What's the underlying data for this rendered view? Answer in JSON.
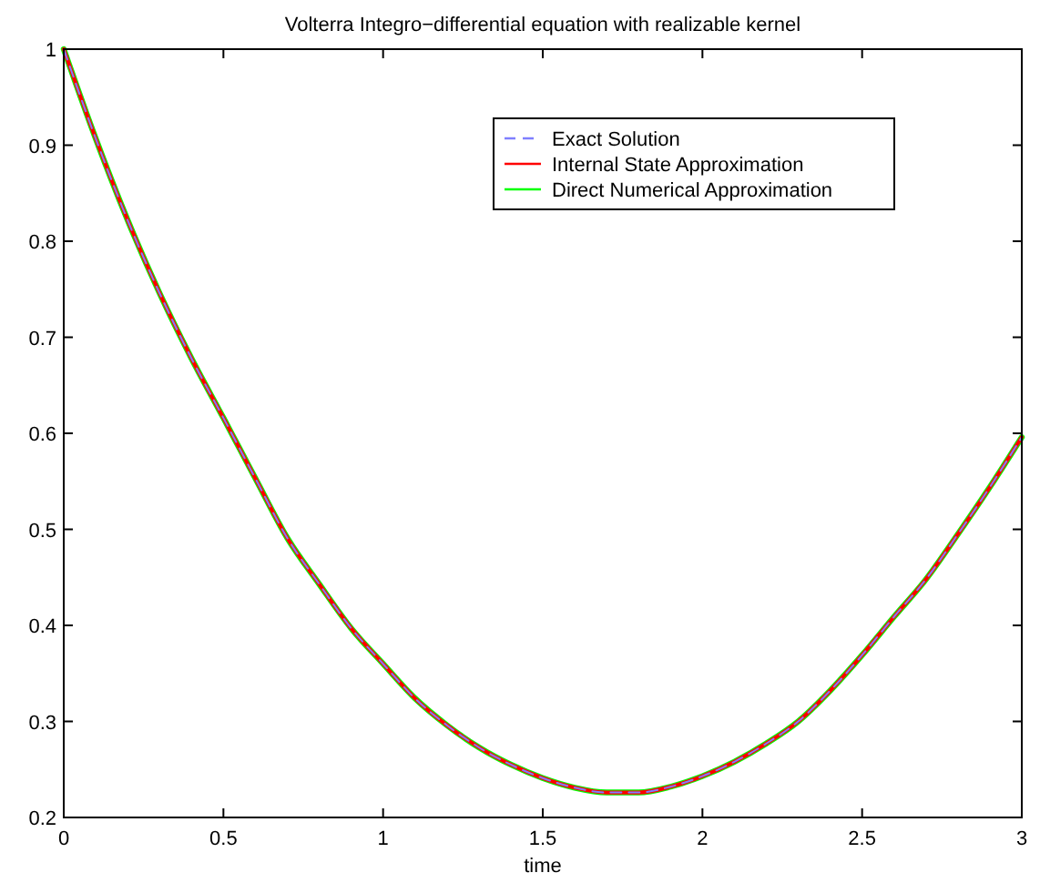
{
  "chart_data": {
    "type": "line",
    "title": "Volterra Integro−differential equation with realizable kernel",
    "xlabel": "time",
    "x": [
      0,
      0.1,
      0.2,
      0.3,
      0.4,
      0.5,
      0.6,
      0.7,
      0.8,
      0.9,
      1.0,
      1.1,
      1.2,
      1.3,
      1.4,
      1.5,
      1.6,
      1.7,
      1.8,
      1.9,
      2.0,
      2.1,
      2.2,
      2.3,
      2.4,
      2.5,
      2.6,
      2.7,
      2.8,
      2.9,
      3.0
    ],
    "series": [
      {
        "name": "Exact Solution",
        "color": "#7f7fff",
        "line_style": "dashed",
        "values": [
          1,
          0.907,
          0.822,
          0.746,
          0.678,
          0.616,
          0.553,
          0.491,
          0.443,
          0.397,
          0.36,
          0.324,
          0.296,
          0.273,
          0.255,
          0.241,
          0.231,
          0.226,
          0.226,
          0.232,
          0.243,
          0.258,
          0.277,
          0.3,
          0.332,
          0.369,
          0.409,
          0.448,
          0.495,
          0.544,
          0.596
        ]
      },
      {
        "name": "Internal State Approximation",
        "color": "#ff0000",
        "line_style": "solid",
        "values": [
          1,
          0.907,
          0.822,
          0.746,
          0.678,
          0.616,
          0.553,
          0.491,
          0.443,
          0.397,
          0.36,
          0.324,
          0.296,
          0.273,
          0.255,
          0.241,
          0.231,
          0.226,
          0.226,
          0.232,
          0.243,
          0.258,
          0.277,
          0.3,
          0.332,
          0.369,
          0.409,
          0.448,
          0.495,
          0.544,
          0.596
        ]
      },
      {
        "name": "Direct Numerical Approximation",
        "color": "#00ff00",
        "line_style": "solid",
        "values": [
          1,
          0.907,
          0.822,
          0.746,
          0.678,
          0.616,
          0.553,
          0.491,
          0.443,
          0.397,
          0.36,
          0.324,
          0.296,
          0.273,
          0.255,
          0.241,
          0.231,
          0.226,
          0.226,
          0.232,
          0.243,
          0.258,
          0.277,
          0.3,
          0.332,
          0.369,
          0.409,
          0.448,
          0.495,
          0.544,
          0.596
        ]
      }
    ],
    "xlim": [
      0,
      3
    ],
    "xticks": [
      0,
      0.5,
      1,
      1.5,
      2,
      2.5,
      3
    ],
    "ylim": [
      0.2,
      1
    ],
    "yticks": [
      0.2,
      0.3,
      0.4,
      0.5,
      0.6,
      0.7,
      0.8,
      0.9,
      1
    ],
    "grid": false,
    "legend": "top right"
  }
}
